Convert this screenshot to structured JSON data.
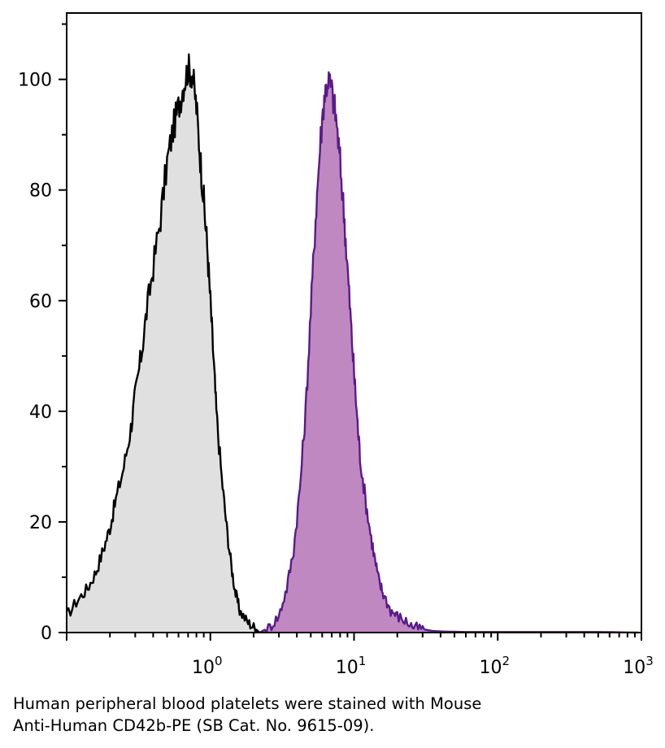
{
  "chart_data": {
    "type": "area",
    "x_scale": "log",
    "xlim": [
      0.1,
      1000
    ],
    "ylim": [
      0,
      112
    ],
    "x_ticks": [
      {
        "value": 1,
        "base": "10",
        "exp": "0"
      },
      {
        "value": 10,
        "base": "10",
        "exp": "1"
      },
      {
        "value": 100,
        "base": "10",
        "exp": "2"
      },
      {
        "value": 1000,
        "base": "10",
        "exp": "3"
      }
    ],
    "y_ticks": [
      0,
      20,
      40,
      60,
      80,
      100
    ],
    "grid": false,
    "title": "",
    "xlabel": "",
    "ylabel": "",
    "series": [
      {
        "fill": "#e0e0e0",
        "stroke": "#000000",
        "x": [
          0.1,
          0.12,
          0.14,
          0.16,
          0.18,
          0.2,
          0.22,
          0.25,
          0.28,
          0.3,
          0.33,
          0.36,
          0.4,
          0.45,
          0.5,
          0.55,
          0.6,
          0.65,
          0.7,
          0.75,
          0.8,
          0.85,
          0.9,
          0.95,
          1.0,
          1.05,
          1.1,
          1.2,
          1.3,
          1.4,
          1.5,
          1.6,
          1.8,
          2.0,
          2.2
        ],
        "y": [
          3,
          6,
          8,
          11,
          15,
          19,
          24,
          30,
          37,
          43,
          50,
          58,
          66,
          75,
          85,
          91,
          95,
          99,
          102,
          101,
          95,
          86,
          78,
          70,
          60,
          50,
          40,
          28,
          19,
          12,
          7,
          4,
          2,
          1,
          0
        ]
      },
      {
        "fill": "#c088c0",
        "stroke": "#5a1a8a",
        "x": [
          2.2,
          2.6,
          3.0,
          3.4,
          3.8,
          4.2,
          4.6,
          5.0,
          5.4,
          5.8,
          6.2,
          6.6,
          7.0,
          7.5,
          8.0,
          8.5,
          9.0,
          9.5,
          10.0,
          10.5,
          11.0,
          12.0,
          13.0,
          14.0,
          15.0,
          16.0,
          18.0,
          20.0,
          23.0,
          26.0,
          30.0,
          35.0,
          40.0,
          60.0,
          100.0,
          200.0,
          500.0,
          950.0
        ],
        "y": [
          0,
          1,
          3,
          8,
          15,
          26,
          40,
          58,
          75,
          88,
          97,
          100,
          98,
          93,
          85,
          76,
          66,
          56,
          47,
          39,
          32,
          24,
          18,
          13,
          9,
          7,
          4,
          3,
          2,
          1,
          0.6,
          0.3,
          0.2,
          0.1,
          0.1,
          0.1,
          0.1,
          0
        ]
      }
    ]
  },
  "caption": {
    "line1": "Human peripheral blood platelets were stained with Mouse",
    "line2": "Anti-Human CD42b-PE (SB Cat. No. 9615-09)."
  }
}
